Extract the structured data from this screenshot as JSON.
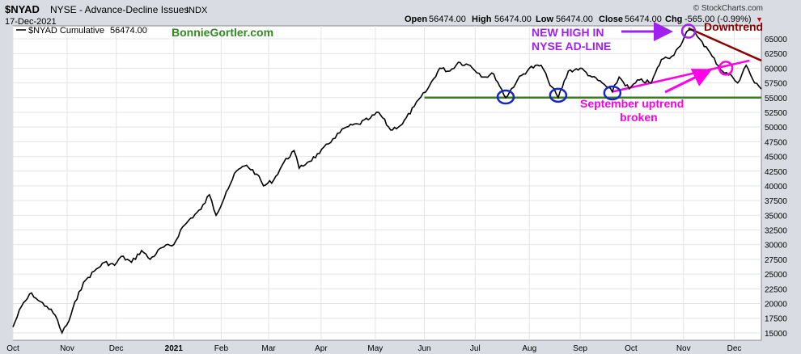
{
  "header": {
    "symbol": "$NYAD",
    "name": "NYSE - Advance-Decline Issues",
    "exchange": "INDX",
    "date": "17-Dec-2021",
    "open_label": "Open",
    "open": "56474.00",
    "high_label": "High",
    "high": "56474.00",
    "low_label": "Low",
    "low": "56474.00",
    "close_label": "Close",
    "close": "56474.00",
    "chg_label": "Chg",
    "chg": "-565.00 (-0.99%)",
    "chg_arrow": "▼",
    "brand": "© StockCharts.com"
  },
  "legend": {
    "label": "$NYAD Cumulative",
    "value": "56474.00"
  },
  "annotations": {
    "watermark": "BonnieGortler.com",
    "new_high_line1": "NEW HIGH IN",
    "new_high_line2": "NYSE AD-LINE",
    "downtrend": "Downtrend",
    "uptrend_line1": "September uptrend",
    "uptrend_line2": "broken"
  },
  "colors": {
    "line": "#000000",
    "support": "#3a7d1e",
    "circle_blue": "#1428c8",
    "uptrend": "#ff00e6",
    "downtrend": "#8b0000",
    "new_high": "#a020f0",
    "watermark": "#2e8b1e"
  },
  "chart_data": {
    "type": "line",
    "series_name": "$NYAD Cumulative",
    "x_start": "2020-10-01",
    "x_end": "2021-12-17",
    "x_ticks": [
      {
        "label": "Oct",
        "date": "2020-10-01"
      },
      {
        "label": "Nov",
        "date": "2020-11-02"
      },
      {
        "label": "Dec",
        "date": "2020-12-01"
      },
      {
        "label": "2021",
        "date": "2021-01-04"
      },
      {
        "label": "Feb",
        "date": "2021-02-01"
      },
      {
        "label": "Mar",
        "date": "2021-03-01"
      },
      {
        "label": "Apr",
        "date": "2021-04-01"
      },
      {
        "label": "May",
        "date": "2021-05-03"
      },
      {
        "label": "Jun",
        "date": "2021-06-01"
      },
      {
        "label": "Jul",
        "date": "2021-07-01"
      },
      {
        "label": "Aug",
        "date": "2021-08-02"
      },
      {
        "label": "Sep",
        "date": "2021-09-01"
      },
      {
        "label": "Oct",
        "date": "2021-10-01"
      },
      {
        "label": "Nov",
        "date": "2021-11-01"
      },
      {
        "label": "Dec",
        "date": "2021-12-01"
      }
    ],
    "ylim": [
      13750,
      67200
    ],
    "y_ticks": [
      15000,
      17500,
      20000,
      22500,
      25000,
      27500,
      30000,
      32500,
      35000,
      37500,
      40000,
      42500,
      45000,
      47500,
      50000,
      52500,
      55000,
      57500,
      60000,
      62500,
      65000
    ],
    "grid": true,
    "points": [
      [
        "2020-10-01",
        16000
      ],
      [
        "2020-10-06",
        19500
      ],
      [
        "2020-10-12",
        21800
      ],
      [
        "2020-10-16",
        20500
      ],
      [
        "2020-10-21",
        19500
      ],
      [
        "2020-10-26",
        18000
      ],
      [
        "2020-10-30",
        15000
      ],
      [
        "2020-11-03",
        17000
      ],
      [
        "2020-11-09",
        22000
      ],
      [
        "2020-11-13",
        24000
      ],
      [
        "2020-11-18",
        25500
      ],
      [
        "2020-11-24",
        27000
      ],
      [
        "2020-11-30",
        26500
      ],
      [
        "2020-12-04",
        28000
      ],
      [
        "2020-12-10",
        27000
      ],
      [
        "2020-12-16",
        29000
      ],
      [
        "2020-12-21",
        27500
      ],
      [
        "2020-12-28",
        29500
      ],
      [
        "2021-01-04",
        30000
      ],
      [
        "2021-01-08",
        32500
      ],
      [
        "2021-01-14",
        34500
      ],
      [
        "2021-01-20",
        36000
      ],
      [
        "2021-01-25",
        38500
      ],
      [
        "2021-01-29",
        35000
      ],
      [
        "2021-02-04",
        39000
      ],
      [
        "2021-02-10",
        42500
      ],
      [
        "2021-02-16",
        43500
      ],
      [
        "2021-02-22",
        42000
      ],
      [
        "2021-02-26",
        40000
      ],
      [
        "2021-03-04",
        41000
      ],
      [
        "2021-03-10",
        44000
      ],
      [
        "2021-03-16",
        46000
      ],
      [
        "2021-03-19",
        43000
      ],
      [
        "2021-03-24",
        44000
      ],
      [
        "2021-03-31",
        45500
      ],
      [
        "2021-04-08",
        48000
      ],
      [
        "2021-04-16",
        50000
      ],
      [
        "2021-04-23",
        50500
      ],
      [
        "2021-04-30",
        51500
      ],
      [
        "2021-05-05",
        52500
      ],
      [
        "2021-05-12",
        49500
      ],
      [
        "2021-05-19",
        50500
      ],
      [
        "2021-05-26",
        53500
      ],
      [
        "2021-06-03",
        56500
      ],
      [
        "2021-06-10",
        60000
      ],
      [
        "2021-06-16",
        59500
      ],
      [
        "2021-06-21",
        61000
      ],
      [
        "2021-06-28",
        60500
      ],
      [
        "2021-07-06",
        58500
      ],
      [
        "2021-07-12",
        59000
      ],
      [
        "2021-07-19",
        55000
      ],
      [
        "2021-07-26",
        58000
      ],
      [
        "2021-08-02",
        60000
      ],
      [
        "2021-08-09",
        60500
      ],
      [
        "2021-08-13",
        58000
      ],
      [
        "2021-08-19",
        55000
      ],
      [
        "2021-08-25",
        59500
      ],
      [
        "2021-09-01",
        60000
      ],
      [
        "2021-09-08",
        58500
      ],
      [
        "2021-09-14",
        57500
      ],
      [
        "2021-09-20",
        56000
      ],
      [
        "2021-09-24",
        58500
      ],
      [
        "2021-09-30",
        56500
      ],
      [
        "2021-10-06",
        58000
      ],
      [
        "2021-10-13",
        57500
      ],
      [
        "2021-10-19",
        61500
      ],
      [
        "2021-10-25",
        62000
      ],
      [
        "2021-10-29",
        63500
      ],
      [
        "2021-11-04",
        66500
      ],
      [
        "2021-11-08",
        66000
      ],
      [
        "2021-11-12",
        64500
      ],
      [
        "2021-11-18",
        62000
      ],
      [
        "2021-11-24",
        59500
      ],
      [
        "2021-11-30",
        58500
      ],
      [
        "2021-12-03",
        57500
      ],
      [
        "2021-12-08",
        60500
      ],
      [
        "2021-12-13",
        57500
      ],
      [
        "2021-12-17",
        56474
      ]
    ],
    "support_line": {
      "from": [
        "2021-06-01",
        55000
      ],
      "to": [
        "2021-12-17",
        55000
      ]
    },
    "uptrend_line": {
      "from": [
        "2021-09-20",
        56000
      ],
      "to": [
        "2021-12-10",
        61300
      ]
    },
    "downtrend_line": {
      "from": [
        "2021-11-04",
        66800
      ],
      "to": [
        "2021-12-17",
        61300
      ]
    },
    "circles": [
      {
        "date": "2021-07-19",
        "value": 55100,
        "color": "blue"
      },
      {
        "date": "2021-08-19",
        "value": 55400,
        "color": "blue"
      },
      {
        "date": "2021-09-20",
        "value": 55800,
        "color": "blue"
      },
      {
        "date": "2021-11-04",
        "value": 66300,
        "color": "purple"
      },
      {
        "date": "2021-11-26",
        "value": 60000,
        "color": "magenta"
      }
    ]
  }
}
